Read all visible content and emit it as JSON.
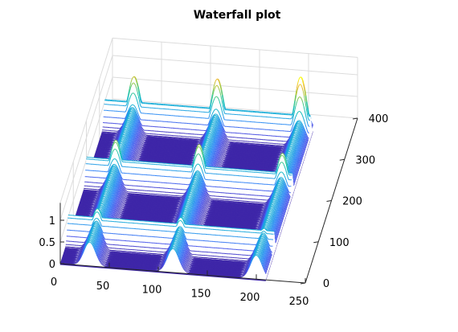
{
  "chart_data": {
    "type": "waterfall",
    "title": "Waterfall plot",
    "xlabel": "",
    "ylabel": "",
    "zlabel": "",
    "x_ticks": [
      0,
      50,
      100,
      150,
      200,
      250
    ],
    "y_ticks": [
      0,
      100,
      200,
      300,
      400
    ],
    "z_ticks": [
      0,
      0.5,
      1
    ],
    "x_tick_labels": [
      "0",
      "50",
      "100",
      "150",
      "200",
      "250"
    ],
    "y_tick_labels": [
      "0",
      "100",
      "200",
      "300",
      "400"
    ],
    "z_tick_labels": [
      "0",
      "0.5",
      "1"
    ],
    "xlim": [
      0,
      250
    ],
    "ylim": [
      0,
      400
    ],
    "zlim": [
      0,
      1.4
    ],
    "grid": true,
    "colormap": "parula",
    "ridges": {
      "x_centers": [
        30,
        115,
        200
      ],
      "y_centers": [
        60,
        200,
        340
      ],
      "ridge_height": 0.55,
      "ridge_width": 6,
      "band_width": 8
    },
    "peaks": [
      {
        "x": 30,
        "y": 60,
        "z": 0.75
      },
      {
        "x": 115,
        "y": 60,
        "z": 0.7
      },
      {
        "x": 200,
        "y": 60,
        "z": 0.6
      },
      {
        "x": 30,
        "y": 200,
        "z": 1.0
      },
      {
        "x": 115,
        "y": 200,
        "z": 1.05
      },
      {
        "x": 200,
        "y": 200,
        "z": 1.0
      },
      {
        "x": 30,
        "y": 340,
        "z": 1.15
      },
      {
        "x": 115,
        "y": 340,
        "z": 1.25
      },
      {
        "x": 200,
        "y": 340,
        "z": 1.45
      }
    ]
  }
}
